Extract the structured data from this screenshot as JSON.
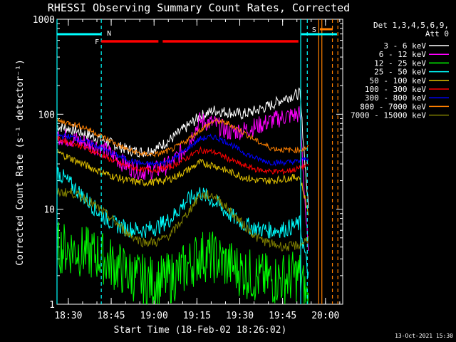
{
  "chart_data": {
    "type": "line",
    "title": "RHESSI Observing Summary Count Rates, Corrected",
    "xlabel": "Start Time (18-Feb-02 18:26:02)",
    "ylabel": "Corrected Count Rate (s⁻¹ detector⁻¹)",
    "ylim": [
      1,
      1000
    ],
    "yscale": "log",
    "xlim_minutes": [
      0,
      100
    ],
    "x_ticks": [
      "18:30",
      "18:45",
      "19:00",
      "19:15",
      "19:30",
      "19:45",
      "20:00"
    ],
    "x_tick_minutes": [
      3.97,
      18.97,
      33.97,
      48.97,
      63.97,
      78.97,
      93.97
    ],
    "y_ticks": [
      "1",
      "10",
      "100",
      "1000"
    ],
    "y_tick_values": [
      1,
      10,
      100,
      1000
    ],
    "legend_title": [
      "Det 1,3,4,5,6,9,",
      "Att 0"
    ],
    "legend_placement": "right",
    "timestamp": "13-Oct-2021 15:30",
    "annotations": {
      "night": {
        "label": "N",
        "color": "#00ffff",
        "start": 0,
        "end": 15.5,
        "second_start": 85.5,
        "second_end": 98
      },
      "flare": {
        "label": "F",
        "color": "#ff0000",
        "segments": [
          [
            15.5,
            35.5
          ],
          [
            37,
            84.5
          ]
        ]
      },
      "saa": {
        "label": "S",
        "color": "#ff8000",
        "start": 92,
        "end": 96.5
      }
    },
    "vertical_lines": [
      {
        "x": 0,
        "color": "#00ffff",
        "style": "solid"
      },
      {
        "x": 15.5,
        "color": "#00ffff",
        "style": "dashed"
      },
      {
        "x": 85.3,
        "color": "#00ffff",
        "style": "solid"
      },
      {
        "x": 87.6,
        "color": "#00ffff",
        "style": "dashed"
      },
      {
        "x": 91.6,
        "color": "#ff8000",
        "style": "solid"
      },
      {
        "x": 92.7,
        "color": "#ff8000",
        "style": "solid"
      },
      {
        "x": 96.4,
        "color": "#ff8000",
        "style": "dashed"
      },
      {
        "x": 98.3,
        "color": "#ff8000",
        "style": "dashed"
      }
    ],
    "x_minutes": [
      0,
      5,
      10,
      15,
      20,
      25,
      30,
      35,
      40,
      45,
      50,
      55,
      60,
      65,
      70,
      75,
      80,
      85,
      88
    ],
    "series": [
      {
        "name": "3 - 6 keV",
        "color": "#ffffff",
        "values": [
          75,
          70,
          62,
          55,
          48,
          42,
          40,
          44,
          55,
          72,
          95,
          110,
          105,
          100,
          110,
          125,
          150,
          165,
          10
        ]
      },
      {
        "name": "6 - 12 keV",
        "color": "#ff00ff",
        "values": [
          60,
          55,
          50,
          45,
          36,
          28,
          25,
          26,
          30,
          45,
          85,
          80,
          65,
          68,
          75,
          85,
          95,
          100,
          3
        ]
      },
      {
        "name": "12 - 25 keV",
        "color": "#00ff00",
        "values": [
          4,
          3.8,
          3.5,
          3.2,
          2.6,
          2.1,
          1.8,
          1.7,
          1.9,
          2.4,
          3.3,
          3.1,
          2.6,
          2.2,
          1.9,
          1.8,
          1.9,
          2.0,
          1
        ]
      },
      {
        "name": "25 - 50 keV",
        "color": "#00ffff",
        "values": [
          25,
          18,
          13,
          9,
          7,
          6.2,
          6,
          6.5,
          8,
          12,
          15,
          12,
          9,
          7,
          6.2,
          6,
          6.2,
          7,
          2
        ]
      },
      {
        "name": "50 - 100 keV",
        "color": "#e0c000",
        "values": [
          40,
          34,
          29,
          25,
          22,
          20,
          19,
          19.5,
          21,
          25,
          31,
          29,
          25,
          22,
          20,
          20,
          21,
          22,
          9
        ]
      },
      {
        "name": "100 - 300 keV",
        "color": "#ff0000",
        "values": [
          55,
          50,
          44,
          38,
          32,
          28,
          26,
          26,
          28,
          34,
          42,
          40,
          34,
          29,
          26,
          25,
          25,
          27,
          30
        ]
      },
      {
        "name": "300 - 800 keV",
        "color": "#0000ff",
        "values": [
          60,
          58,
          52,
          45,
          38,
          33,
          30,
          30,
          33,
          42,
          55,
          58,
          50,
          40,
          34,
          31,
          31,
          32,
          35
        ]
      },
      {
        "name": "800 - 7000 keV",
        "color": "#ff8000",
        "values": [
          85,
          80,
          72,
          60,
          50,
          42,
          38,
          38,
          42,
          52,
          68,
          85,
          80,
          65,
          52,
          44,
          42,
          42,
          45
        ]
      },
      {
        "name": "7000 - 15000 keV",
        "color": "#808000",
        "values": [
          15,
          15,
          13,
          10,
          7.5,
          5.5,
          4.5,
          4.5,
          5.5,
          8.5,
          14,
          14,
          10,
          7,
          5,
          4.3,
          4,
          4.2,
          5
        ]
      }
    ]
  }
}
